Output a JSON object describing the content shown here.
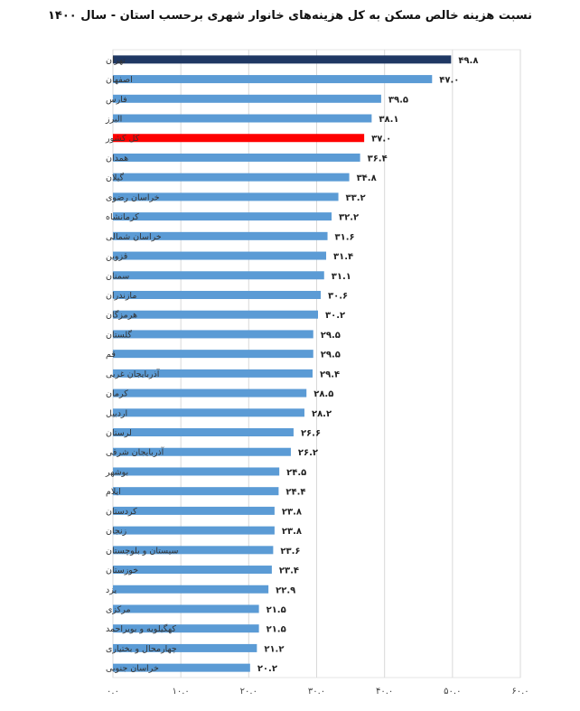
{
  "chart_data": {
    "type": "bar",
    "orientation": "horizontal",
    "title": "نسبت هزینه خالص مسکن به کل هزینه‌های خانوار شهری برحسب استان - سال ۱۴۰۰",
    "categories": [
      "تهران",
      "اصفهان",
      "فارس",
      "البرز",
      "کل کشور",
      "همدان",
      "گیلان",
      "خراسان رضوی",
      "کرمانشاه",
      "خراسان شمالی",
      "قزوین",
      "سمنان",
      "مازندران",
      "هرمزگان",
      "گلستان",
      "قم",
      "آذربایجان غربی",
      "کرمان",
      "اردبیل",
      "لرستان",
      "آذربایجان شرقی",
      "بوشهر",
      "ایلام",
      "کردستان",
      "زنجان",
      "سیستان و بلوچستان",
      "خوزستان",
      "یزد",
      "مرکزی",
      "کهگیلویه و بویراحمد",
      "چهارمحال و بختیاری",
      "خراسان جنوبی"
    ],
    "values": [
      49.8,
      47.0,
      39.5,
      38.1,
      37.0,
      36.4,
      34.8,
      33.2,
      32.2,
      31.6,
      31.4,
      31.1,
      30.6,
      30.2,
      29.5,
      29.5,
      29.4,
      28.5,
      28.2,
      26.6,
      26.2,
      24.5,
      24.4,
      23.8,
      23.8,
      23.6,
      23.4,
      22.9,
      21.5,
      21.5,
      21.2,
      20.2
    ],
    "value_labels": [
      "۴۹.۸",
      "۴۷.۰",
      "۳۹.۵",
      "۳۸.۱",
      "۳۷.۰",
      "۳۶.۴",
      "۳۴.۸",
      "۳۳.۲",
      "۳۲.۲",
      "۳۱.۶",
      "۳۱.۴",
      "۳۱.۱",
      "۳۰.۶",
      "۳۰.۲",
      "۲۹.۵",
      "۲۹.۵",
      "۲۹.۴",
      "۲۸.۵",
      "۲۸.۲",
      "۲۶.۶",
      "۲۶.۲",
      "۲۴.۵",
      "۲۴.۴",
      "۲۳.۸",
      "۲۳.۸",
      "۲۳.۶",
      "۲۳.۴",
      "۲۲.۹",
      "۲۱.۵",
      "۲۱.۵",
      "۲۱.۲",
      "۲۰.۲"
    ],
    "xlim": [
      0,
      60
    ],
    "x_ticks": [
      0,
      10,
      20,
      30,
      40,
      50,
      60
    ],
    "x_tick_labels": [
      "۰.۰",
      "۱۰.۰",
      "۲۰.۰",
      "۳۰.۰",
      "۴۰.۰",
      "۵۰.۰",
      "۶۰.۰"
    ],
    "grid": true,
    "legend": "none",
    "colors": {
      "default": "#5b9bd5",
      "highlight_top": "#1f3864",
      "national": "#ff0000",
      "grid": "#d9d9d9"
    },
    "highlight": {
      "تهران": "highlight_top",
      "کل کشور": "national"
    }
  }
}
